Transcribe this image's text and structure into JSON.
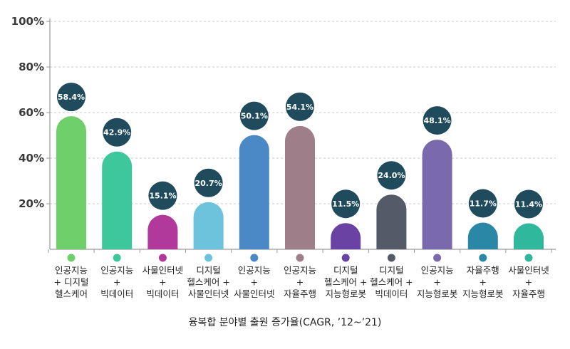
{
  "chart_data": {
    "type": "bar",
    "title": "융복합 분야별 출원 증가율(CAGR, ’12~’21)",
    "xlabel": "",
    "ylabel": "",
    "ylim": [
      0,
      100
    ],
    "yticks": [
      20,
      40,
      60,
      80,
      100
    ],
    "ytick_labels": [
      "20%",
      "40%",
      "60%",
      "80%",
      "100%"
    ],
    "grid": true,
    "categories": [
      [
        "인공지능",
        "+ 디지털",
        "헬스케어"
      ],
      [
        "인공지능",
        "+",
        "빅데이터"
      ],
      [
        "사물인터넷",
        "+",
        "빅데이터"
      ],
      [
        "디지털",
        "헬스케어 +",
        "사물인터넷"
      ],
      [
        "인공지능",
        "+",
        "사물인터넷"
      ],
      [
        "인공지능",
        "+",
        "자율주행"
      ],
      [
        "디지털",
        "헬스케어 +",
        "지능형로봇"
      ],
      [
        "디지털",
        "헬스케어 +",
        "빅데이터"
      ],
      [
        "인공지능",
        "+",
        "지능형로봇"
      ],
      [
        "자율주행",
        "+",
        "지능형로봇"
      ],
      [
        "사물인터넷",
        "+",
        "자율주행"
      ]
    ],
    "values": [
      58.4,
      42.9,
      15.1,
      20.7,
      50.1,
      54.1,
      11.5,
      24.0,
      48.1,
      11.7,
      11.4
    ],
    "data_labels": [
      "58.4%",
      "42.9%",
      "15.1%",
      "20.7%",
      "50.1%",
      "54.1%",
      "11.5%",
      "24.0%",
      "48.1%",
      "11.7%",
      "11.4%"
    ],
    "colors": [
      "#6fd06b",
      "#3ec79b",
      "#b2399c",
      "#6dc3dc",
      "#4a88c6",
      "#9e7e88",
      "#6a42a3",
      "#545a68",
      "#7a69ac",
      "#2b87a6",
      "#2fb89c"
    ],
    "label_circle_color": "#1f4b5c"
  }
}
